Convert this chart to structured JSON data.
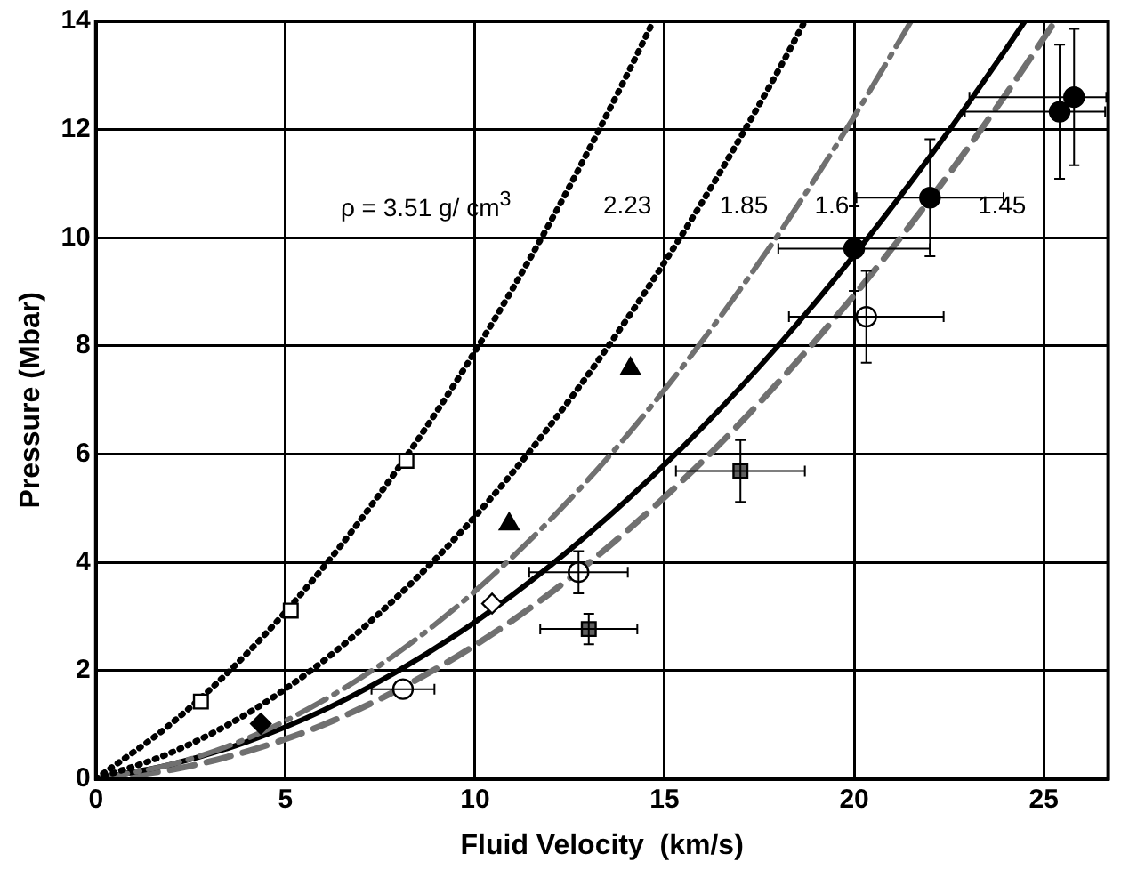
{
  "chart_data": {
    "type": "scatter",
    "xlabel": "Fluid Velocity  (km/s)",
    "ylabel": "Pressure (Mbar)",
    "xlim": [
      0,
      26.7
    ],
    "xticks": [
      0,
      5,
      10,
      15,
      20,
      25
    ],
    "ylim": [
      0,
      14
    ],
    "yticks": [
      0,
      2,
      4,
      6,
      8,
      10,
      12,
      14
    ],
    "grid": true,
    "legend": false,
    "annotations": [
      "ρ = 3.51 g/ cm$^{3}$",
      "2.23",
      "1.85",
      "1.6",
      "1.45"
    ],
    "series": [
      {
        "type": "line",
        "color": "#000000",
        "line_style": "dotted",
        "marker": "none",
        "x": [
          0,
          2,
          4,
          6,
          8,
          10,
          12,
          14,
          14.7
        ],
        "values": [
          0,
          1.03,
          2.33,
          3.91,
          5.77,
          7.9,
          10.31,
          13.0,
          14.0
        ]
      },
      {
        "type": "line",
        "color": "#000000",
        "line_style": "dotted",
        "marker": "none",
        "x": [
          0,
          2,
          4,
          6,
          8,
          10,
          12,
          14,
          16,
          18,
          18.7
        ],
        "values": [
          0,
          0.49,
          1.21,
          2.18,
          3.4,
          4.85,
          6.55,
          8.49,
          10.67,
          13.09,
          14.0
        ]
      },
      {
        "type": "line",
        "color": "#707070",
        "line_style": "dashdot",
        "marker": "none",
        "x": [
          0,
          2,
          4,
          6,
          8,
          10,
          12,
          14,
          16,
          18,
          20,
          21.5
        ],
        "values": [
          0,
          0.27,
          0.75,
          1.45,
          2.35,
          3.47,
          4.8,
          6.34,
          8.1,
          10.06,
          12.24,
          14.0
        ]
      },
      {
        "type": "line",
        "color": "#000000",
        "line_style": "solid",
        "marker": "none",
        "x": [
          0,
          2,
          4,
          6,
          8,
          10,
          12,
          14,
          16,
          18,
          20,
          22,
          24,
          24.5
        ],
        "values": [
          0,
          0.27,
          0.69,
          1.27,
          2.01,
          2.9,
          3.95,
          5.15,
          6.5,
          8.01,
          9.68,
          11.5,
          13.48,
          14.0
        ]
      },
      {
        "type": "line",
        "color": "#707070",
        "line_style": "dashed",
        "marker": "none",
        "x": [
          0,
          2,
          4,
          6,
          8,
          10,
          12,
          14,
          16,
          18,
          20,
          22,
          24,
          25.3
        ],
        "values": [
          0,
          0.17,
          0.51,
          1.0,
          1.66,
          2.47,
          3.44,
          4.58,
          5.87,
          7.33,
          8.94,
          10.71,
          12.65,
          14.0
        ]
      },
      {
        "color": "#ffffff",
        "marker": "square",
        "x": [
          2.77,
          5.14,
          8.19
        ],
        "values": [
          1.43,
          3.11,
          5.88
        ]
      },
      {
        "color": "#000000",
        "marker": "diamond",
        "x": [
          4.35
        ],
        "values": [
          1.02
        ]
      },
      {
        "color": "#000000",
        "marker": "triangle",
        "x": [
          10.9,
          14.1
        ],
        "values": [
          4.71,
          7.58
        ]
      },
      {
        "color": "#ffffff",
        "marker": "diamond",
        "x": [
          10.45
        ],
        "values": [
          3.24
        ]
      },
      {
        "color": "#ffffff",
        "marker": "circle",
        "x": [
          8.1,
          12.73,
          20.32
        ],
        "values": [
          1.66,
          3.82,
          8.54
        ],
        "xerrors": [
          0.83,
          1.3,
          2.04
        ],
        "errors": [
          null,
          0.39,
          0.85
        ]
      },
      {
        "color": "#606060",
        "marker": "square",
        "x": [
          13.0,
          17.0
        ],
        "values": [
          2.77,
          5.69
        ],
        "xerrors": [
          1.28,
          1.7
        ],
        "errors": [
          0.28,
          0.57
        ]
      },
      {
        "color": "#000000",
        "marker": "circle",
        "x": [
          20.0,
          22.0,
          25.42,
          25.8
        ],
        "values": [
          9.8,
          10.74,
          12.33,
          12.6
        ],
        "xerrors": [
          2.0,
          1.94,
          [
            22.92,
            26.62
          ],
          [
            23.04,
            26.65
          ]
        ],
        "errors": [
          0.78,
          1.08,
          1.24,
          1.26
        ]
      }
    ]
  }
}
